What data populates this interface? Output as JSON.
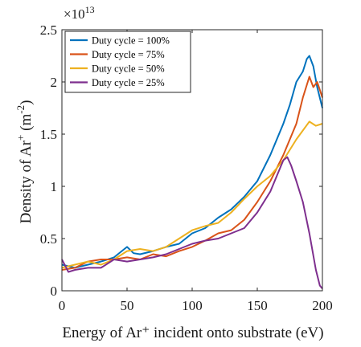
{
  "chart_data": {
    "type": "line",
    "xlabel": "Energy of Ar⁺ incident onto substrate (eV)",
    "ylabel": {
      "base": "Density of Ar",
      "sup": "+",
      "unit_open": " (m",
      "unit_sup": "-2",
      "unit_close": ")"
    },
    "y_multiplier": {
      "base": "×10",
      "exponent": "13"
    },
    "xlim": [
      0,
      200
    ],
    "ylim": [
      0,
      2.5
    ],
    "x_ticks": [
      0,
      50,
      100,
      150,
      200
    ],
    "y_ticks": [
      0,
      0.5,
      1,
      1.5,
      2,
      2.5
    ],
    "x_tick_labels": [
      "0",
      "50",
      "100",
      "150",
      "200"
    ],
    "y_tick_labels": [
      "0",
      "0.5",
      "1",
      "1.5",
      "2",
      "2.5"
    ],
    "grid": false,
    "legend_position": "top-left",
    "series": [
      {
        "name": "Duty cycle = 100%",
        "color": "#0072BD",
        "points": [
          [
            0,
            0.25
          ],
          [
            10,
            0.22
          ],
          [
            20,
            0.25
          ],
          [
            30,
            0.28
          ],
          [
            40,
            0.32
          ],
          [
            50,
            0.42
          ],
          [
            55,
            0.36
          ],
          [
            60,
            0.35
          ],
          [
            70,
            0.38
          ],
          [
            80,
            0.42
          ],
          [
            90,
            0.45
          ],
          [
            100,
            0.55
          ],
          [
            110,
            0.6
          ],
          [
            120,
            0.7
          ],
          [
            130,
            0.78
          ],
          [
            140,
            0.9
          ],
          [
            150,
            1.05
          ],
          [
            160,
            1.3
          ],
          [
            170,
            1.6
          ],
          [
            175,
            1.78
          ],
          [
            180,
            2.0
          ],
          [
            185,
            2.1
          ],
          [
            188,
            2.22
          ],
          [
            190,
            2.25
          ],
          [
            193,
            2.15
          ],
          [
            196,
            1.95
          ],
          [
            200,
            1.75
          ]
        ]
      },
      {
        "name": "Duty cycle = 75%",
        "color": "#D95319",
        "points": [
          [
            0,
            0.2
          ],
          [
            10,
            0.22
          ],
          [
            20,
            0.28
          ],
          [
            30,
            0.3
          ],
          [
            40,
            0.3
          ],
          [
            50,
            0.32
          ],
          [
            60,
            0.3
          ],
          [
            70,
            0.35
          ],
          [
            80,
            0.33
          ],
          [
            90,
            0.38
          ],
          [
            100,
            0.42
          ],
          [
            110,
            0.48
          ],
          [
            120,
            0.55
          ],
          [
            130,
            0.58
          ],
          [
            140,
            0.68
          ],
          [
            150,
            0.85
          ],
          [
            160,
            1.05
          ],
          [
            170,
            1.3
          ],
          [
            180,
            1.6
          ],
          [
            185,
            1.85
          ],
          [
            190,
            2.05
          ],
          [
            193,
            1.95
          ],
          [
            196,
            2.0
          ],
          [
            200,
            1.85
          ]
        ]
      },
      {
        "name": "Duty cycle = 50%",
        "color": "#EDB120",
        "points": [
          [
            0,
            0.22
          ],
          [
            10,
            0.25
          ],
          [
            20,
            0.28
          ],
          [
            30,
            0.25
          ],
          [
            40,
            0.3
          ],
          [
            50,
            0.38
          ],
          [
            60,
            0.4
          ],
          [
            70,
            0.38
          ],
          [
            80,
            0.42
          ],
          [
            90,
            0.5
          ],
          [
            100,
            0.58
          ],
          [
            110,
            0.62
          ],
          [
            120,
            0.65
          ],
          [
            130,
            0.75
          ],
          [
            140,
            0.88
          ],
          [
            150,
            1.0
          ],
          [
            160,
            1.1
          ],
          [
            170,
            1.25
          ],
          [
            180,
            1.45
          ],
          [
            190,
            1.62
          ],
          [
            195,
            1.58
          ],
          [
            200,
            1.6
          ]
        ]
      },
      {
        "name": "Duty cycle = 25%",
        "color": "#7E2F8E",
        "points": [
          [
            0,
            0.3
          ],
          [
            5,
            0.18
          ],
          [
            10,
            0.2
          ],
          [
            20,
            0.22
          ],
          [
            30,
            0.22
          ],
          [
            40,
            0.3
          ],
          [
            50,
            0.28
          ],
          [
            60,
            0.3
          ],
          [
            70,
            0.32
          ],
          [
            80,
            0.35
          ],
          [
            90,
            0.4
          ],
          [
            100,
            0.45
          ],
          [
            110,
            0.48
          ],
          [
            120,
            0.5
          ],
          [
            130,
            0.55
          ],
          [
            140,
            0.6
          ],
          [
            150,
            0.75
          ],
          [
            160,
            0.95
          ],
          [
            165,
            1.1
          ],
          [
            170,
            1.25
          ],
          [
            173,
            1.28
          ],
          [
            176,
            1.2
          ],
          [
            180,
            1.05
          ],
          [
            185,
            0.85
          ],
          [
            190,
            0.55
          ],
          [
            195,
            0.2
          ],
          [
            198,
            0.05
          ],
          [
            200,
            0.02
          ]
        ]
      }
    ]
  }
}
